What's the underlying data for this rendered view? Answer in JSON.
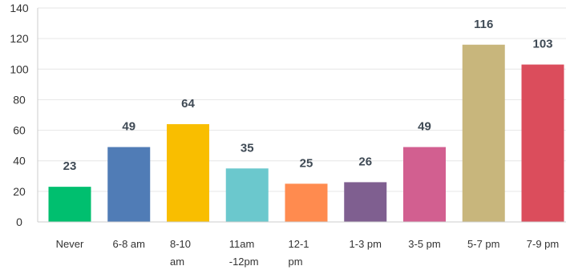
{
  "chart_data": {
    "type": "bar",
    "title": "",
    "xlabel": "",
    "ylabel": "",
    "ylim": [
      0,
      140
    ],
    "yticks": [
      0,
      20,
      40,
      60,
      80,
      100,
      120,
      140
    ],
    "grid": true,
    "legend": "none",
    "categories": [
      [
        "Never"
      ],
      [
        "6-8 am"
      ],
      [
        "8-10",
        "am"
      ],
      [
        "11am",
        "-12pm"
      ],
      [
        "12-1",
        "pm"
      ],
      [
        "1-3 pm"
      ],
      [
        "3-5 pm"
      ],
      [
        "5-7 pm"
      ],
      [
        "7-9 pm"
      ]
    ],
    "values": [
      23,
      49,
      64,
      35,
      25,
      26,
      49,
      116,
      103
    ],
    "colors": [
      "#00bf6f",
      "#507cb6",
      "#f9be00",
      "#6bc8cd",
      "#ff8b4f",
      "#7f5f90",
      "#d25f90",
      "#c8b67c",
      "#db4d5c"
    ]
  }
}
